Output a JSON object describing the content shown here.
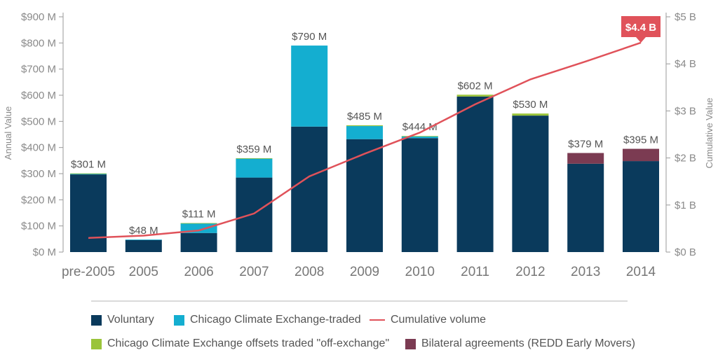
{
  "chart_data": {
    "type": "bar",
    "categories": [
      "pre-2005",
      "2005",
      "2006",
      "2007",
      "2008",
      "2009",
      "2010",
      "2011",
      "2012",
      "2013",
      "2014"
    ],
    "series": [
      {
        "name": "Voluntary",
        "color": "#0a3a5c",
        "values": [
          297,
          46,
          73,
          285,
          480,
          432,
          436,
          595,
          522,
          338,
          348
        ]
      },
      {
        "name": "Chicago Climate Exchange-traded",
        "color": "#14aed0",
        "values": [
          3,
          2,
          37,
          73,
          310,
          50,
          6,
          0,
          0,
          0,
          0
        ]
      },
      {
        "name": "Chicago Climate Exchange offsets traded \"off-exchange\"",
        "color": "#9ac43a",
        "values": [
          1,
          0,
          1,
          1,
          0,
          3,
          2,
          7,
          8,
          0,
          0
        ]
      },
      {
        "name": "Bilateral agreements (REDD Early Movers)",
        "color": "#7b3b52",
        "values": [
          0,
          0,
          0,
          0,
          0,
          0,
          0,
          0,
          0,
          41,
          47
        ]
      }
    ],
    "totals": [
      "$301 M",
      "$48 M",
      "$111 M",
      "$359 M",
      "$790 M",
      "$485 M",
      "$444 M",
      "$602 M",
      "$530 M",
      "$379 M",
      "$395 M"
    ],
    "line": {
      "name": "Cumulative volume",
      "color": "#e0525a",
      "axis": "right",
      "values": [
        0.3,
        0.35,
        0.46,
        0.82,
        1.61,
        2.09,
        2.54,
        3.14,
        3.67,
        4.05,
        4.45
      ]
    },
    "callout": "$4.4 B",
    "left_axis": {
      "label": "Annual Value",
      "ylim": [
        0,
        900
      ],
      "ticks": [
        "$0 M",
        "$100 M",
        "$200 M",
        "$300 M",
        "$400 M",
        "$500 M",
        "$600 M",
        "$700 M",
        "$800 M",
        "$900 M"
      ]
    },
    "right_axis": {
      "label": "Cumulative Value",
      "ylim": [
        0,
        5
      ],
      "ticks": [
        "$0 B",
        "$1 B",
        "$2 B",
        "$3 B",
        "$4 B",
        "$5 B"
      ]
    },
    "grid": false,
    "legend_position": "bottom"
  }
}
